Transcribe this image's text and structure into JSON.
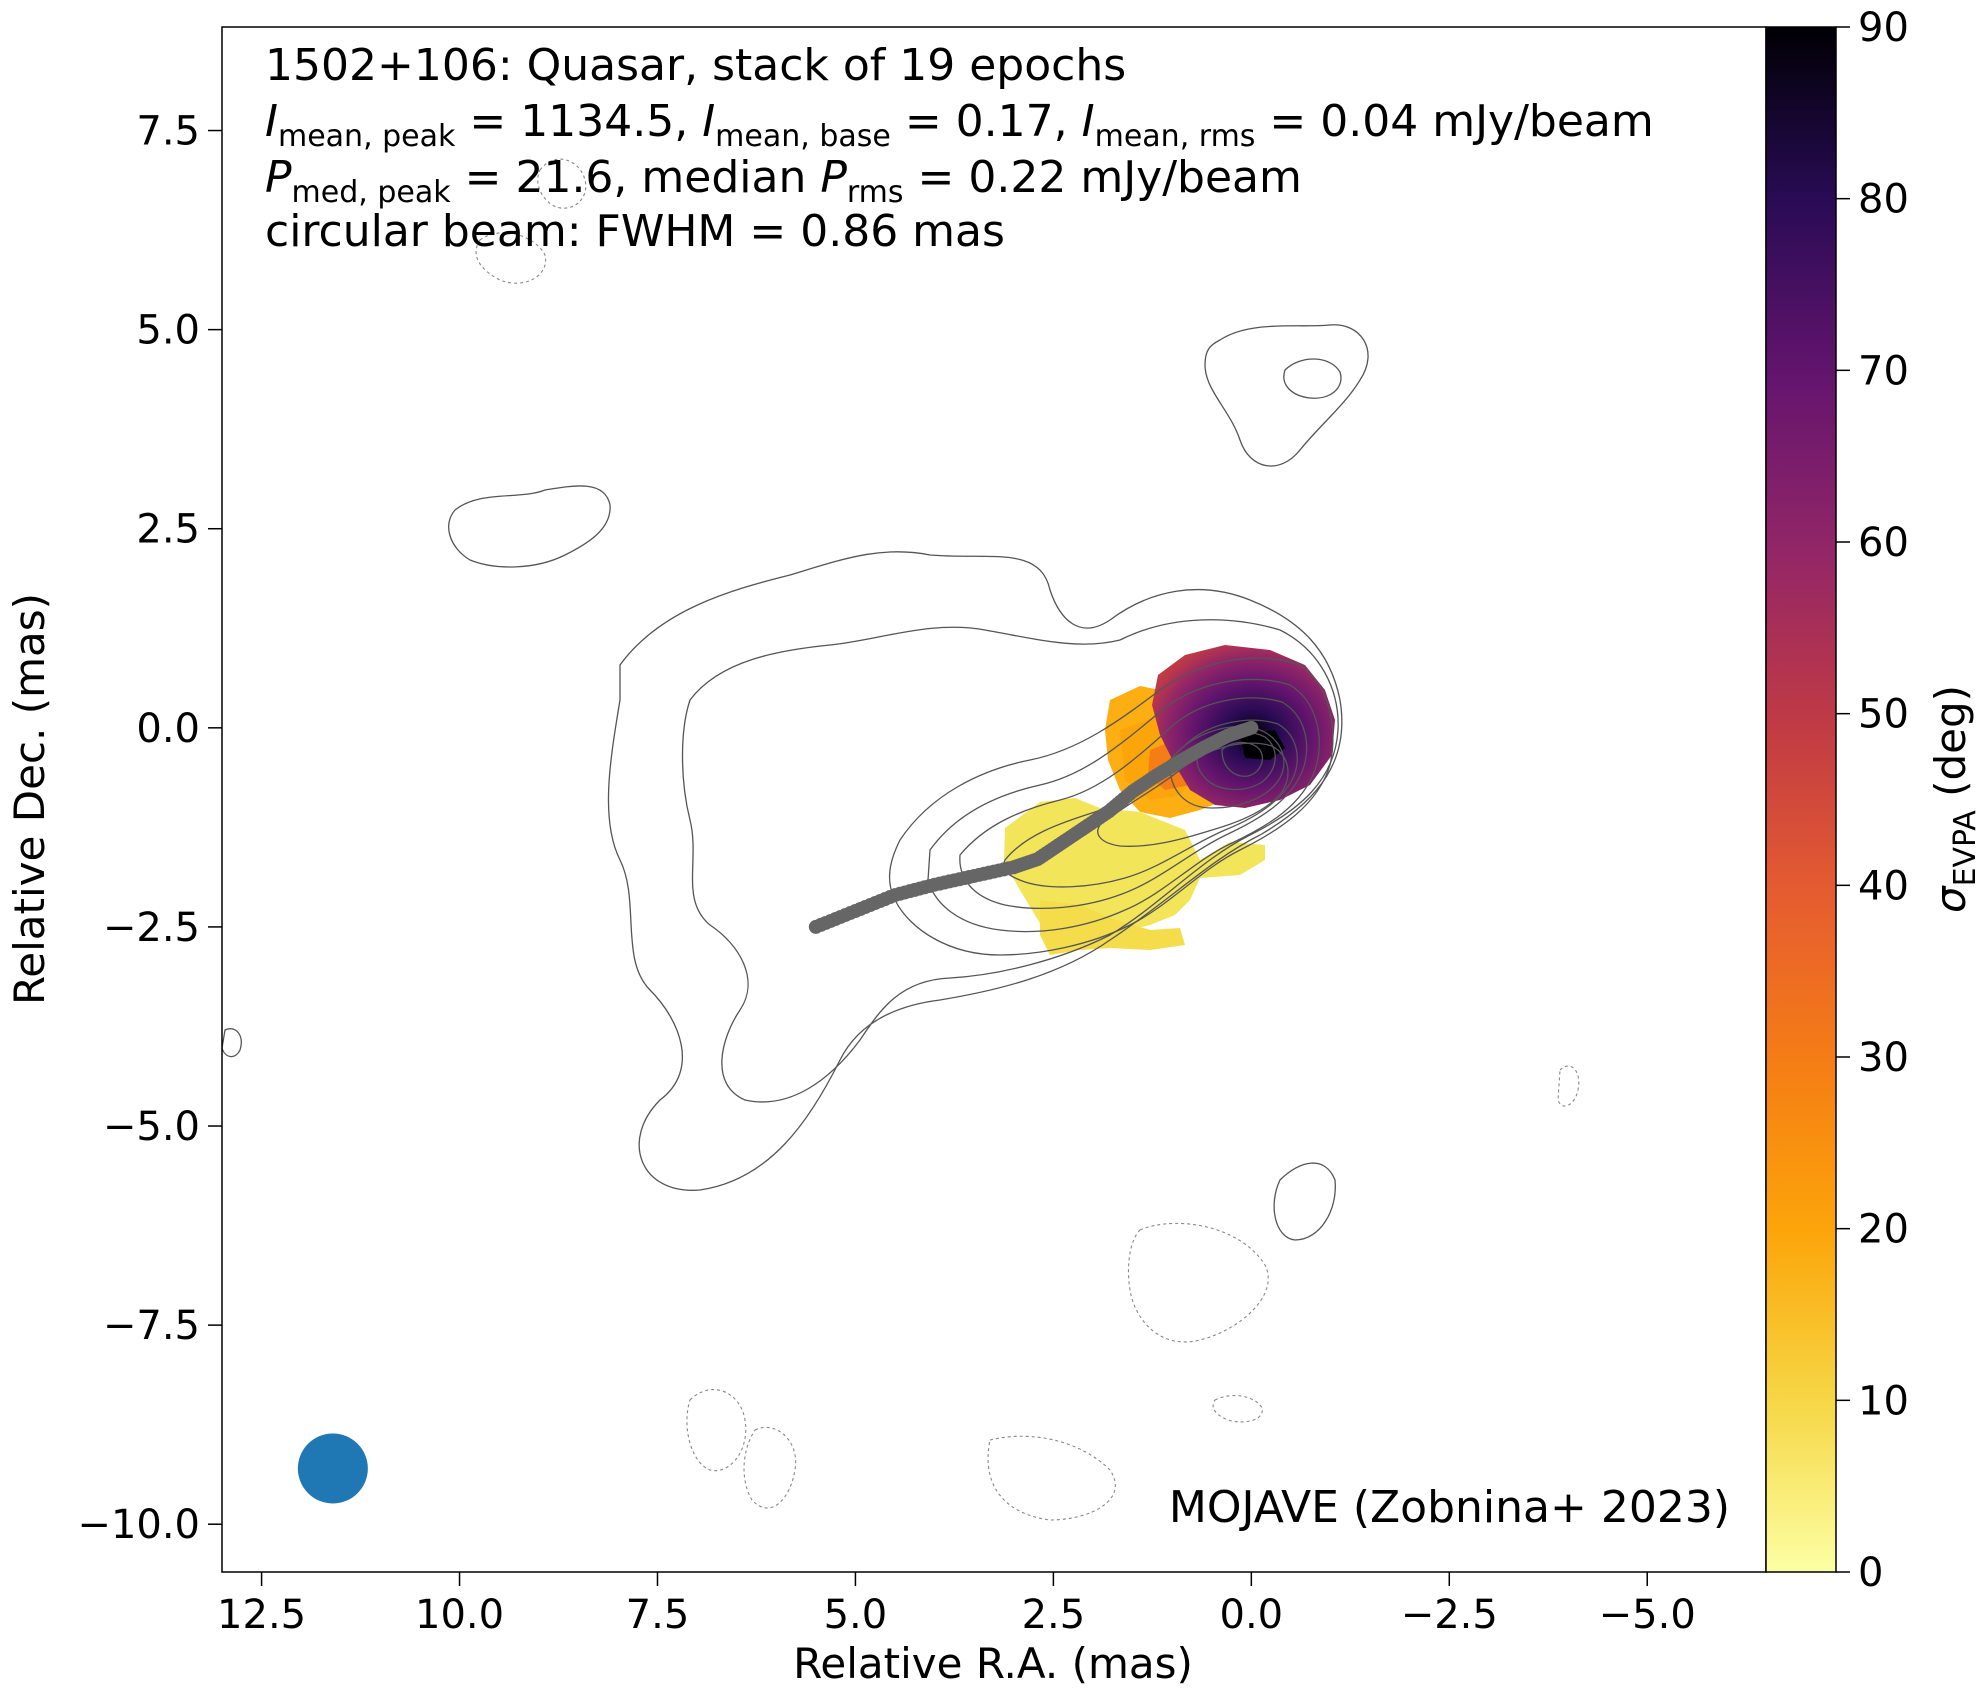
{
  "chart_data": {
    "type": "heatmap",
    "annotation_lines": [
      "1502+106: Quasar, stack of 19 epochs",
      "I_mean,peak = 1134.5, I_mean,base = 0.17, I_mean,rms = 0.04 mJy/beam",
      "P_med,peak = 21.6, median P_rms = 0.22 mJy/beam",
      "circular beam: FWHM = 0.86 mas"
    ],
    "annotation": {
      "line1": "1502+106: Quasar, stack of 19 epochs",
      "imean_peak_sym": "I",
      "imean_peak_sub": "mean, peak",
      "imean_peak_val": " = 1134.5, ",
      "imean_base_sym": "I",
      "imean_base_sub": "mean, base",
      "imean_base_val": " = 0.17, ",
      "imean_rms_sym": "I",
      "imean_rms_sub": "mean, rms",
      "imean_rms_val": " = 0.04 mJy/beam",
      "pmed_sym": "P",
      "pmed_sub": "med, peak",
      "pmed_val": " = 21.6, median ",
      "prms_sym": "P",
      "prms_sub": "rms",
      "prms_val": " = 0.22 mJy/beam",
      "line4": "circular beam: FWHM = 0.86 mas"
    },
    "credit": "MOJAVE (Zobnina+ 2023)",
    "xlabel": "Relative R.A. (mas)",
    "ylabel": "Relative Dec. (mas)",
    "xlim": [
      13.0,
      -6.5
    ],
    "ylim": [
      -10.6,
      8.8
    ],
    "xticks": [
      12.5,
      10.0,
      7.5,
      5.0,
      2.5,
      0.0,
      -2.5,
      -5.0
    ],
    "xtick_labels": [
      "12.5",
      "10.0",
      "7.5",
      "5.0",
      "2.5",
      "0.0",
      "−2.5",
      "−5.0"
    ],
    "yticks": [
      7.5,
      5.0,
      2.5,
      0.0,
      -2.5,
      -5.0,
      -7.5,
      -10.0
    ],
    "ytick_labels": [
      "7.5",
      "5.0",
      "2.5",
      "0.0",
      "−2.5",
      "−5.0",
      "−7.5",
      "−10.0"
    ],
    "colorbar": {
      "label_sym": "σ",
      "label_sub": "EVPA",
      "label_unit": " (deg)",
      "range": [
        0,
        90
      ],
      "ticks": [
        0,
        10,
        20,
        30,
        40,
        50,
        60,
        70,
        80,
        90
      ],
      "tick_labels": [
        "0",
        "10",
        "20",
        "30",
        "40",
        "50",
        "60",
        "70",
        "80",
        "90"
      ],
      "colormap": "inferno_r",
      "colors": [
        "#fcffa4",
        "#f6d746",
        "#fca50a",
        "#f57d15",
        "#e55c30",
        "#c03a45",
        "#932667",
        "#65156e",
        "#280b54",
        "#000004"
      ]
    },
    "ridge_line": {
      "x": [
        5.5,
        5.0,
        4.5,
        4.0,
        3.5,
        3.0,
        2.7,
        2.4,
        2.1,
        1.8,
        1.5,
        1.2,
        0.9,
        0.6,
        0.3,
        0.0
      ],
      "y": [
        -2.5,
        -2.3,
        -2.1,
        -1.97,
        -1.86,
        -1.75,
        -1.65,
        -1.45,
        -1.25,
        -1.05,
        -0.8,
        -0.6,
        -0.42,
        -0.25,
        -0.1,
        0.0
      ],
      "color": "#666666"
    },
    "sigma_evpa_map": [
      {
        "x": 0.0,
        "y": 0.0,
        "sigma": 82
      },
      {
        "x": 0.1,
        "y": -0.2,
        "sigma": 88
      },
      {
        "x": -0.3,
        "y": 0.2,
        "sigma": 75
      },
      {
        "x": 0.5,
        "y": 0.3,
        "sigma": 68
      },
      {
        "x": 0.8,
        "y": -0.1,
        "sigma": 60
      },
      {
        "x": -0.6,
        "y": 0.0,
        "sigma": 55
      },
      {
        "x": 1.2,
        "y": -0.3,
        "sigma": 30
      },
      {
        "x": 1.6,
        "y": -0.5,
        "sigma": 22
      },
      {
        "x": 1.3,
        "y": -0.9,
        "sigma": 20
      },
      {
        "x": 2.0,
        "y": -1.1,
        "sigma": 14
      },
      {
        "x": 2.5,
        "y": -1.4,
        "sigma": 8
      },
      {
        "x": 2.8,
        "y": -1.6,
        "sigma": 6
      },
      {
        "x": 1.7,
        "y": -1.6,
        "sigma": 10
      },
      {
        "x": 1.0,
        "y": -1.9,
        "sigma": 9
      },
      {
        "x": 2.2,
        "y": -2.3,
        "sigma": 10
      },
      {
        "x": 0.5,
        "y": -2.0,
        "sigma": 11
      }
    ],
    "beam": {
      "x": 11.6,
      "y": -9.3,
      "fwhm_mas": 0.86,
      "color": "#1f77b4"
    },
    "grid": false
  }
}
